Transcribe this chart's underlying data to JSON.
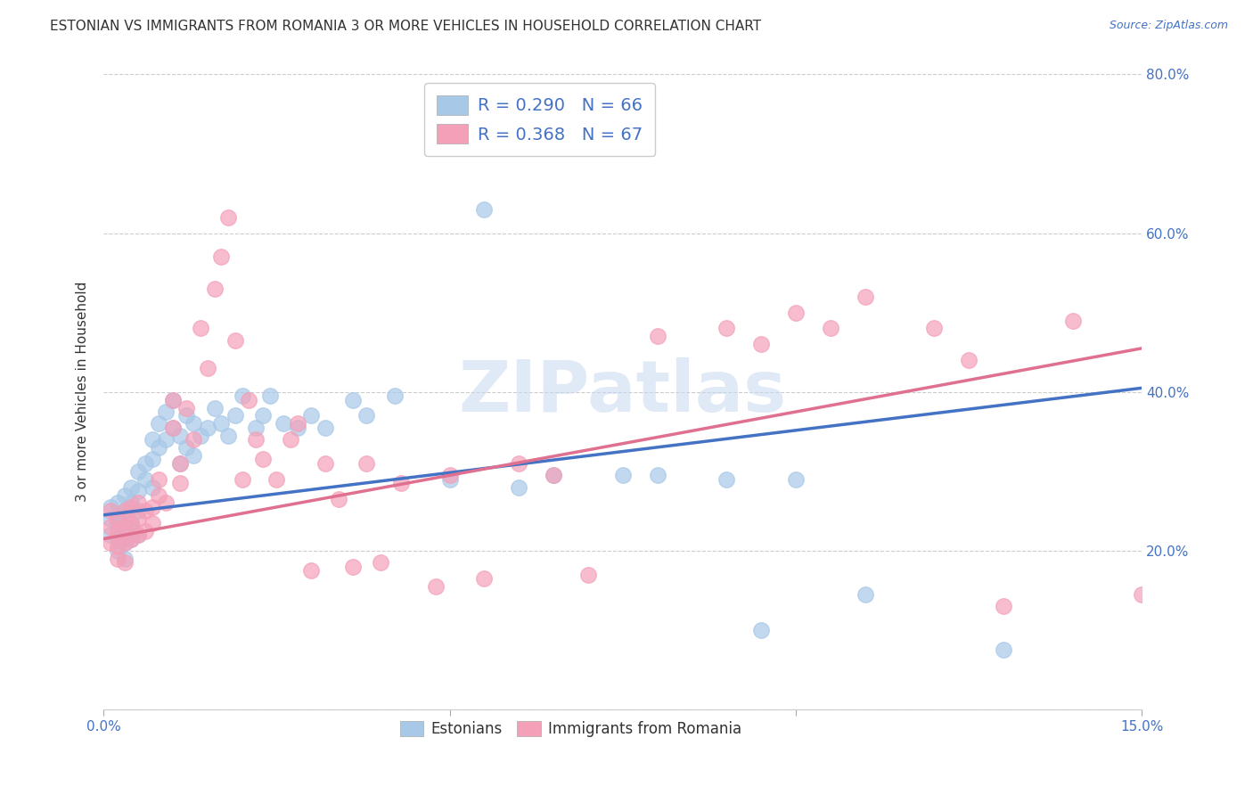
{
  "title": "ESTONIAN VS IMMIGRANTS FROM ROMANIA 3 OR MORE VEHICLES IN HOUSEHOLD CORRELATION CHART",
  "source": "Source: ZipAtlas.com",
  "ylabel": "3 or more Vehicles in Household",
  "xlim": [
    0.0,
    0.15
  ],
  "ylim": [
    0.0,
    0.8
  ],
  "xticks": [
    0.0,
    0.05,
    0.1,
    0.15
  ],
  "xtick_labels": [
    "0.0%",
    "",
    "",
    "15.0%"
  ],
  "yticks": [
    0.0,
    0.2,
    0.4,
    0.6,
    0.8
  ],
  "ytick_labels_right": [
    "",
    "20.0%",
    "40.0%",
    "60.0%",
    "80.0%"
  ],
  "blue_R": 0.29,
  "blue_N": 66,
  "pink_R": 0.368,
  "pink_N": 67,
  "blue_color": "#a8c8e8",
  "pink_color": "#f4a0b8",
  "blue_line_color": "#4472c4",
  "pink_line_color": "#e07090",
  "trendline_blue_y0": 0.245,
  "trendline_blue_y1": 0.405,
  "trendline_pink_y0": 0.215,
  "trendline_pink_y1": 0.455,
  "watermark": "ZIPatlas",
  "background_color": "#ffffff",
  "title_color": "#333333",
  "axis_tick_color": "#4472c4",
  "grid_color": "#cccccc",
  "title_fontsize": 11,
  "ylabel_fontsize": 11,
  "tick_fontsize": 11,
  "blue_x": [
    0.001,
    0.001,
    0.001,
    0.002,
    0.002,
    0.002,
    0.002,
    0.002,
    0.003,
    0.003,
    0.003,
    0.003,
    0.003,
    0.004,
    0.004,
    0.004,
    0.004,
    0.005,
    0.005,
    0.005,
    0.005,
    0.006,
    0.006,
    0.007,
    0.007,
    0.007,
    0.008,
    0.008,
    0.009,
    0.009,
    0.01,
    0.01,
    0.011,
    0.011,
    0.012,
    0.012,
    0.013,
    0.013,
    0.014,
    0.015,
    0.016,
    0.017,
    0.018,
    0.019,
    0.02,
    0.022,
    0.023,
    0.024,
    0.026,
    0.028,
    0.03,
    0.032,
    0.036,
    0.038,
    0.042,
    0.05,
    0.055,
    0.06,
    0.065,
    0.075,
    0.08,
    0.09,
    0.095,
    0.1,
    0.11,
    0.13
  ],
  "blue_y": [
    0.255,
    0.24,
    0.22,
    0.26,
    0.245,
    0.235,
    0.215,
    0.2,
    0.27,
    0.25,
    0.23,
    0.21,
    0.19,
    0.28,
    0.26,
    0.235,
    0.215,
    0.3,
    0.275,
    0.25,
    0.22,
    0.31,
    0.29,
    0.34,
    0.315,
    0.28,
    0.36,
    0.33,
    0.375,
    0.34,
    0.39,
    0.355,
    0.345,
    0.31,
    0.37,
    0.33,
    0.36,
    0.32,
    0.345,
    0.355,
    0.38,
    0.36,
    0.345,
    0.37,
    0.395,
    0.355,
    0.37,
    0.395,
    0.36,
    0.355,
    0.37,
    0.355,
    0.39,
    0.37,
    0.395,
    0.29,
    0.63,
    0.28,
    0.295,
    0.295,
    0.295,
    0.29,
    0.1,
    0.29,
    0.145,
    0.075
  ],
  "pink_x": [
    0.001,
    0.001,
    0.001,
    0.002,
    0.002,
    0.002,
    0.002,
    0.003,
    0.003,
    0.003,
    0.003,
    0.004,
    0.004,
    0.004,
    0.005,
    0.005,
    0.005,
    0.006,
    0.006,
    0.007,
    0.007,
    0.008,
    0.008,
    0.009,
    0.01,
    0.01,
    0.011,
    0.011,
    0.012,
    0.013,
    0.014,
    0.015,
    0.016,
    0.017,
    0.018,
    0.019,
    0.02,
    0.021,
    0.022,
    0.023,
    0.025,
    0.027,
    0.028,
    0.03,
    0.032,
    0.034,
    0.036,
    0.038,
    0.04,
    0.043,
    0.048,
    0.05,
    0.055,
    0.06,
    0.065,
    0.07,
    0.08,
    0.09,
    0.095,
    0.1,
    0.105,
    0.11,
    0.12,
    0.125,
    0.13,
    0.14,
    0.15
  ],
  "pink_y": [
    0.25,
    0.23,
    0.21,
    0.24,
    0.225,
    0.205,
    0.19,
    0.25,
    0.23,
    0.21,
    0.185,
    0.255,
    0.235,
    0.215,
    0.26,
    0.24,
    0.22,
    0.25,
    0.225,
    0.255,
    0.235,
    0.29,
    0.27,
    0.26,
    0.39,
    0.355,
    0.31,
    0.285,
    0.38,
    0.34,
    0.48,
    0.43,
    0.53,
    0.57,
    0.62,
    0.465,
    0.29,
    0.39,
    0.34,
    0.315,
    0.29,
    0.34,
    0.36,
    0.175,
    0.31,
    0.265,
    0.18,
    0.31,
    0.185,
    0.285,
    0.155,
    0.295,
    0.165,
    0.31,
    0.295,
    0.17,
    0.47,
    0.48,
    0.46,
    0.5,
    0.48,
    0.52,
    0.48,
    0.44,
    0.13,
    0.49,
    0.145
  ]
}
